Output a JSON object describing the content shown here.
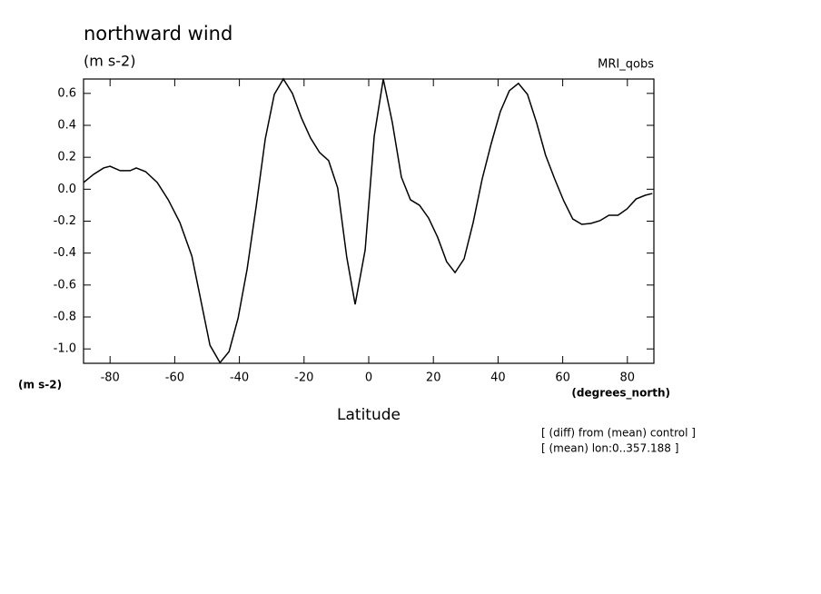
{
  "chart_data": {
    "type": "line",
    "title": "northward wind",
    "y_unit": "(m s-2)",
    "y_label": "(m s-2)",
    "model": "MRI_qobs",
    "x_unit": "(degrees_north)",
    "x_label": "Latitude",
    "notes": [
      "[ (diff) from (mean) control ]",
      "[ (mean) lon:0..357.188 ]"
    ],
    "xlim": [
      -88.2,
      88.2
    ],
    "ylim": [
      -1.09,
      0.69
    ],
    "xticks": [
      -80,
      -60,
      -40,
      -20,
      0,
      20,
      40,
      60,
      80
    ],
    "yticks": [
      {
        "value": -1.0,
        "label": "-1.0"
      },
      -0.8,
      -0.6,
      -0.4,
      -0.2,
      {
        "value": 0,
        "label": "0.0"
      },
      0.2,
      0.4,
      0.6
    ],
    "color": "#000000",
    "x": [
      -88.2,
      -85.1,
      -82,
      -80,
      -76.9,
      -73.8,
      -71.9,
      -69,
      -65.4,
      -62,
      -58.4,
      -54.7,
      -49.1,
      -46,
      -43.2,
      -40.4,
      -37.6,
      -34.8,
      -32,
      -29.2,
      -26.4,
      -23.6,
      -20.8,
      -18,
      -15.2,
      -12.4,
      -9.6,
      -6.8,
      -4.2,
      -1.1,
      1.7,
      4.5,
      7.3,
      10.1,
      12.9,
      15.7,
      18.5,
      21.3,
      24.1,
      26.7,
      29.5,
      32.3,
      35.1,
      37.9,
      40.7,
      43.5,
      46.3,
      49.1,
      51.9,
      54.7,
      57.5,
      60.3,
      63.1,
      65.9,
      68.7,
      71.5,
      74.3,
      77.1,
      79.9,
      82.7,
      85.5,
      87.7
    ],
    "values": [
      0.042,
      0.093,
      0.133,
      0.144,
      0.116,
      0.116,
      0.133,
      0.11,
      0.042,
      -0.066,
      -0.209,
      -0.419,
      -0.977,
      -1.086,
      -1.017,
      -0.807,
      -0.499,
      -0.106,
      0.315,
      0.594,
      0.69,
      0.6,
      0.446,
      0.321,
      0.23,
      0.179,
      0.008,
      -0.425,
      -0.721,
      -0.38,
      0.332,
      0.69,
      0.418,
      0.076,
      -0.066,
      -0.1,
      -0.18,
      -0.3,
      -0.454,
      -0.522,
      -0.436,
      -0.209,
      0.065,
      0.287,
      0.486,
      0.617,
      0.663,
      0.594,
      0.418,
      0.213,
      0.065,
      -0.072,
      -0.186,
      -0.22,
      -0.214,
      -0.197,
      -0.163,
      -0.163,
      -0.123,
      -0.061,
      -0.038,
      -0.027
    ]
  }
}
